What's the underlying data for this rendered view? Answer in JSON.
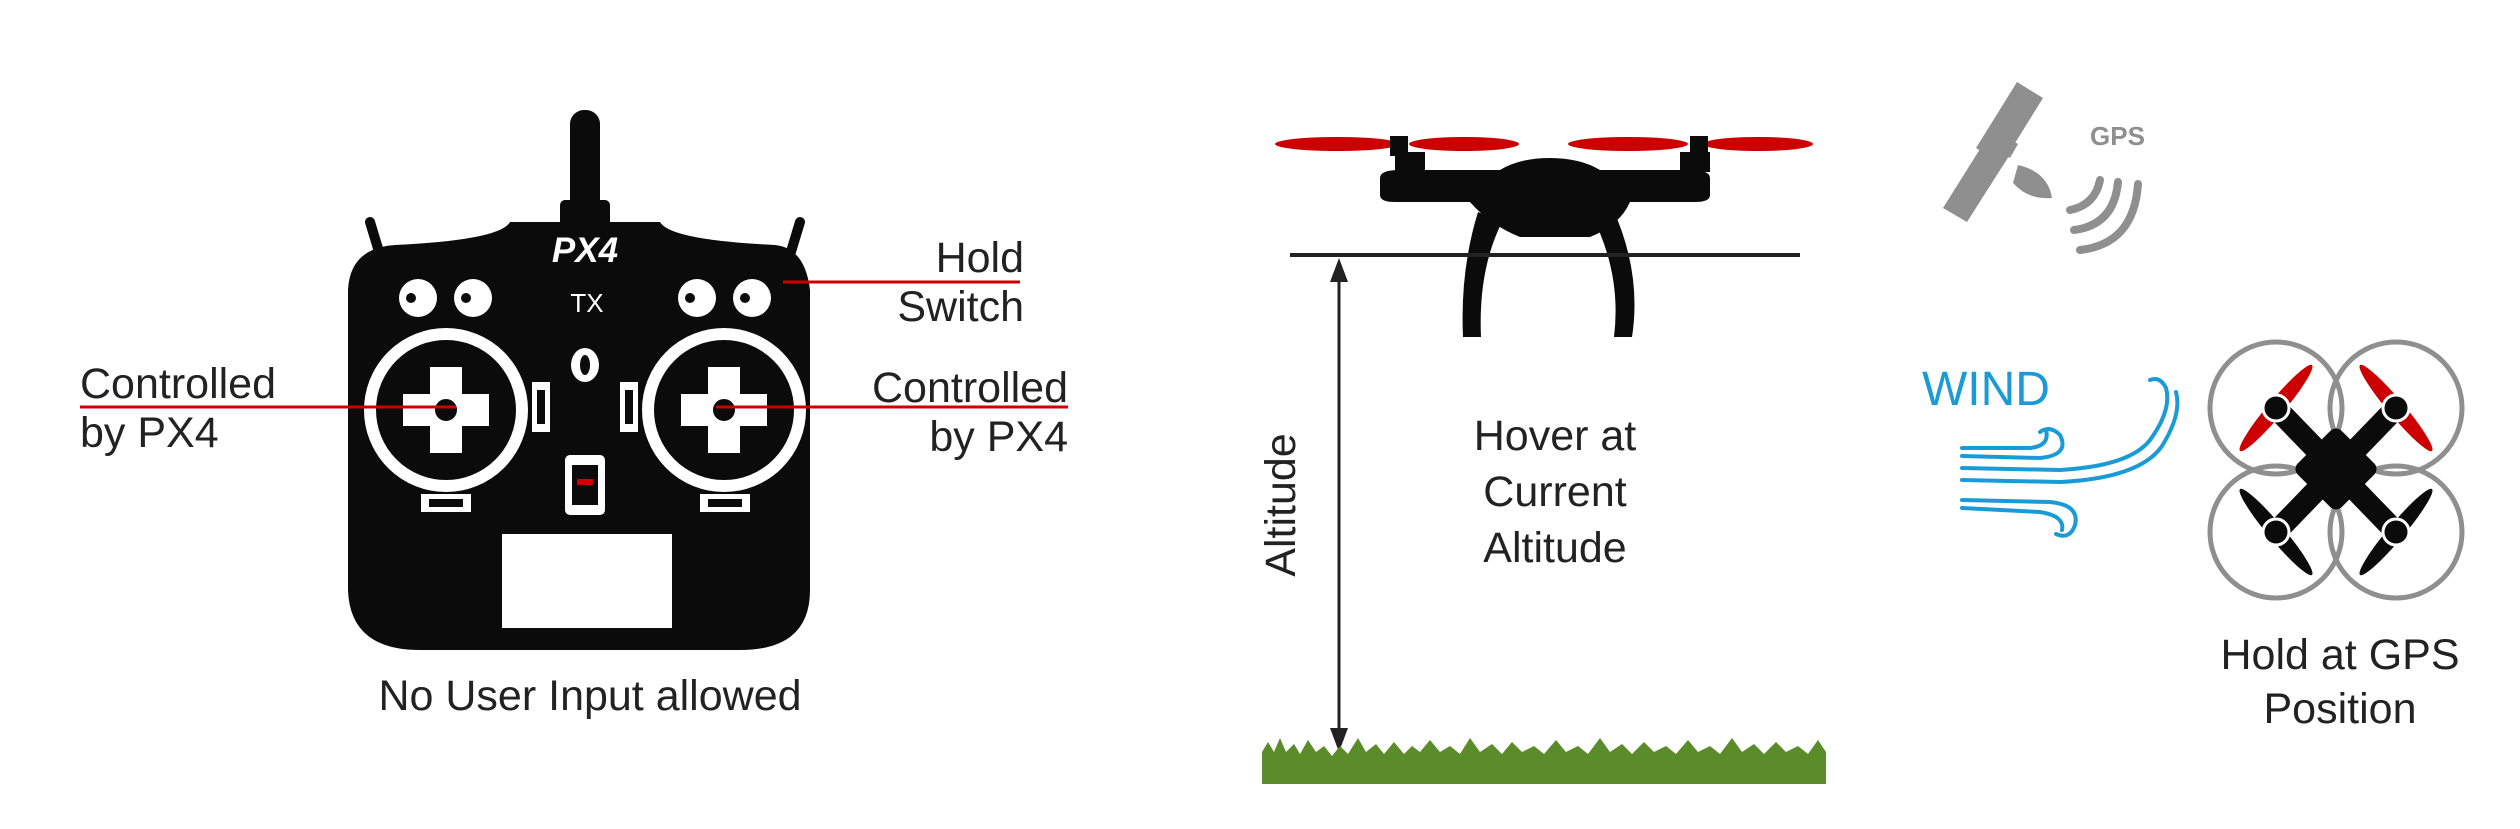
{
  "transmitter": {
    "brand": "PX4",
    "model": "TX",
    "left_stick_label": [
      "Controlled",
      "by PX4"
    ],
    "right_stick_label": [
      "Controlled",
      "by PX4"
    ],
    "switch_label": [
      "Hold",
      "Switch"
    ],
    "caption": "No User Input allowed"
  },
  "altitude_panel": {
    "axis_label": "Altitude",
    "caption": [
      "Hover at",
      "Current",
      "Altitude"
    ]
  },
  "gps_panel": {
    "gps_label": "GPS",
    "wind_label": "WIND",
    "caption": [
      "Hold at GPS",
      "Position"
    ]
  },
  "colors": {
    "red": "#cc0000",
    "wind_blue": "#1a9ad6",
    "grass_green": "#5b8c2a",
    "gray": "#8f8f8f",
    "black": "#0b0b0b"
  }
}
